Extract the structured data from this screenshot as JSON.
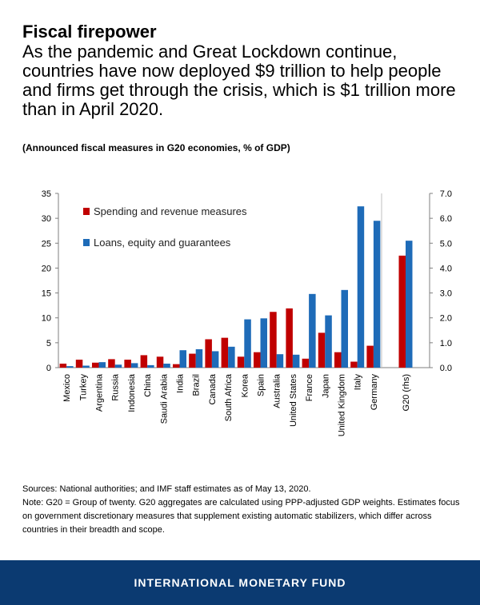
{
  "header": {
    "title": "Fiscal firepower",
    "subtitle": "As the pandemic and Great Lockdown continue, countries have now deployed $9 trillion to help people and firms get through the crisis, which is $1 trillion more than in April 2020."
  },
  "chart_caption": "(Announced fiscal measures in G20 economies, % of GDP)",
  "chart_data": {
    "type": "bar",
    "title": "(Announced fiscal measures in G20 economies, % of GDP)",
    "categories": [
      "Mexico",
      "Turkey",
      "Argentina",
      "Russia",
      "Indonesia",
      "China",
      "Saudi Arabia",
      "India",
      "Brazil",
      "Canada",
      "South Africa",
      "Korea",
      "Spain",
      "Australia",
      "United States",
      "France",
      "Japan",
      "United Kingdom",
      "Italy",
      "Germany",
      "G20 (rhs)"
    ],
    "series": [
      {
        "name": "Spending and revenue measures",
        "color": "#c00000",
        "values": [
          0.8,
          1.6,
          1.0,
          1.7,
          1.6,
          2.5,
          2.2,
          0.7,
          2.8,
          5.7,
          6.0,
          2.2,
          3.1,
          11.2,
          11.9,
          1.8,
          7.0,
          3.1,
          1.2,
          4.4,
          4.5
        ]
      },
      {
        "name": "Loans, equity and guarantees",
        "color": "#1e6bb8",
        "values": [
          0.3,
          0.4,
          1.1,
          0.6,
          0.9,
          0.5,
          0.8,
          3.5,
          3.7,
          3.3,
          4.2,
          9.7,
          9.9,
          2.7,
          2.6,
          14.8,
          10.5,
          15.6,
          32.4,
          29.5,
          5.1
        ]
      }
    ],
    "rhs_categories": [
      "G20 (rhs)"
    ],
    "ylim_left": [
      0,
      35
    ],
    "yticks_left": [
      "0",
      "5",
      "10",
      "15",
      "20",
      "25",
      "30",
      "35"
    ],
    "ylim_right": [
      0,
      7.0
    ],
    "yticks_right": [
      "0.0",
      "1.0",
      "2.0",
      "3.0",
      "4.0",
      "5.0",
      "6.0",
      "7.0"
    ],
    "legend": [
      "Spending and revenue measures",
      "Loans, equity and guarantees"
    ],
    "legend_position": "top-left",
    "grid": false
  },
  "sources": {
    "line1": "Sources: National authorities; and IMF staff estimates as of May 13, 2020.",
    "line2": "Note: G20 = Group of twenty. G20 aggregates are calculated using PPP-adjusted GDP weights. Estimates focus on government discretionary measures that supplement existing automatic stabilizers, which differ across countries in their breadth and scope."
  },
  "footer": {
    "org_name": "INTERNATIONAL MONETARY FUND"
  }
}
